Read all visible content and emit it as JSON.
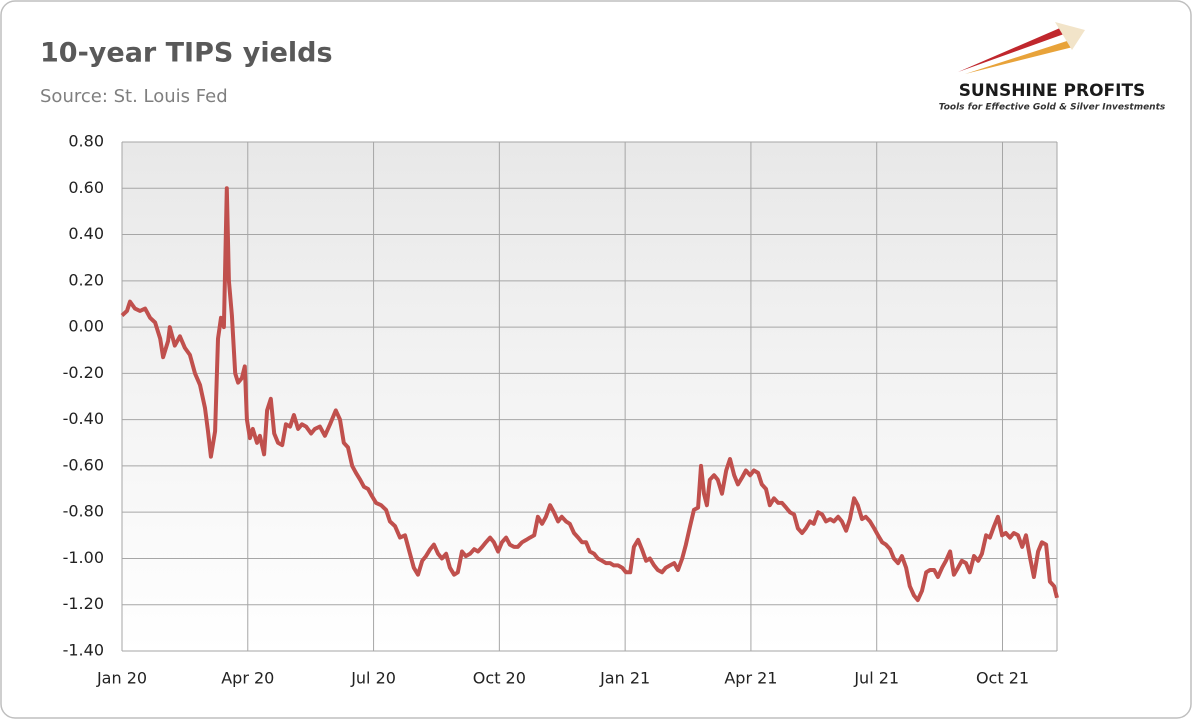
{
  "chart_data": {
    "type": "line",
    "title": "10-year TIPS yields",
    "subtitle": "Source: St. Louis Fed",
    "logo": {
      "name": "SUNSHINE PROFITS",
      "tagline": "Tools for Effective Gold & Silver Investments"
    },
    "x": [
      0,
      0.12,
      0.19,
      0.31,
      0.43,
      0.55,
      0.67,
      0.79,
      0.91,
      0.98,
      1.1,
      1.14,
      1.26,
      1.38,
      1.5,
      1.62,
      1.74,
      1.86,
      1.98,
      2.05,
      2.12,
      2.22,
      2.29,
      2.36,
      2.43,
      2.5,
      2.55,
      2.62,
      2.7,
      2.77,
      2.86,
      2.93,
      2.98,
      3.05,
      3.12,
      3.22,
      3.29,
      3.39,
      3.46,
      3.55,
      3.63,
      3.72,
      3.82,
      3.91,
      4.01,
      4.1,
      4.2,
      4.29,
      4.39,
      4.51,
      4.6,
      4.72,
      4.84,
      4.96,
      5.1,
      5.2,
      5.29,
      5.39,
      5.49,
      5.58,
      5.68,
      5.77,
      5.87,
      5.96,
      6.06,
      6.18,
      6.3,
      6.39,
      6.51,
      6.63,
      6.75,
      6.87,
      6.96,
      7.06,
      7.16,
      7.25,
      7.35,
      7.44,
      7.54,
      7.63,
      7.73,
      7.82,
      7.92,
      8.01,
      8.11,
      8.2,
      8.3,
      8.4,
      8.49,
      8.59,
      8.68,
      8.78,
      8.87,
      8.97,
      9.06,
      9.16,
      9.25,
      9.35,
      9.44,
      9.54,
      9.64,
      9.73,
      9.83,
      9.92,
      10.02,
      10.11,
      10.21,
      10.3,
      10.4,
      10.49,
      10.59,
      10.68,
      10.78,
      10.88,
      10.97,
      11.07,
      11.16,
      11.26,
      11.35,
      11.45,
      11.54,
      11.64,
      11.73,
      11.83,
      11.93,
      12.02,
      12.12,
      12.21,
      12.31,
      12.4,
      12.5,
      12.59,
      12.69,
      12.78,
      12.88,
      12.97,
      13.07,
      13.17,
      13.26,
      13.36,
      13.45,
      13.55,
      13.64,
      13.74,
      13.81,
      13.88,
      13.95,
      14.02,
      14.12,
      14.21,
      14.31,
      14.41,
      14.5,
      14.6,
      14.69,
      14.79,
      14.88,
      14.98,
      15.07,
      15.17,
      15.26,
      15.36,
      15.45,
      15.55,
      15.65,
      15.74,
      15.84,
      15.93,
      16.03,
      16.12,
      16.22,
      16.31,
      16.41,
      16.5,
      16.6,
      16.7,
      16.79,
      16.89,
      16.98,
      17.08,
      17.17,
      17.27,
      17.36,
      17.46,
      17.55,
      17.65,
      17.74,
      17.84,
      17.94,
      18.03,
      18.13,
      18.22,
      18.32,
      18.41,
      18.51,
      18.6,
      18.7,
      18.79,
      18.89,
      18.98,
      19.08,
      19.18,
      19.27,
      19.37,
      19.46,
      19.56,
      19.65,
      19.75,
      19.84,
      19.94,
      20.03,
      20.13,
      20.22,
      20.32,
      20.42,
      20.51,
      20.61,
      20.7,
      20.8,
      20.89,
      20.99,
      21.08,
      21.18,
      21.27,
      21.37,
      21.47,
      21.56,
      21.66,
      21.75,
      21.85,
      21.94,
      22.04,
      22.13,
      22.23,
      22.3
    ],
    "series": [
      {
        "color": "#c0504d",
        "values": [
          0.05,
          0.07,
          0.11,
          0.08,
          0.07,
          0.08,
          0.04,
          0.02,
          -0.05,
          -0.13,
          -0.06,
          0.0,
          -0.08,
          -0.04,
          -0.09,
          -0.12,
          -0.2,
          -0.25,
          -0.35,
          -0.45,
          -0.56,
          -0.45,
          -0.05,
          0.04,
          0.0,
          0.6,
          0.2,
          0.05,
          -0.2,
          -0.24,
          -0.22,
          -0.17,
          -0.4,
          -0.48,
          -0.44,
          -0.5,
          -0.47,
          -0.55,
          -0.36,
          -0.31,
          -0.46,
          -0.5,
          -0.51,
          -0.42,
          -0.43,
          -0.38,
          -0.44,
          -0.42,
          -0.43,
          -0.46,
          -0.44,
          -0.43,
          -0.47,
          -0.42,
          -0.36,
          -0.4,
          -0.5,
          -0.52,
          -0.6,
          -0.63,
          -0.66,
          -0.69,
          -0.7,
          -0.73,
          -0.76,
          -0.77,
          -0.79,
          -0.84,
          -0.86,
          -0.91,
          -0.9,
          -0.98,
          -1.04,
          -1.07,
          -1.01,
          -0.99,
          -0.96,
          -0.94,
          -0.98,
          -1.0,
          -0.98,
          -1.04,
          -1.07,
          -1.06,
          -0.97,
          -0.99,
          -0.98,
          -0.96,
          -0.97,
          -0.95,
          -0.93,
          -0.91,
          -0.93,
          -0.97,
          -0.93,
          -0.91,
          -0.94,
          -0.95,
          -0.95,
          -0.93,
          -0.92,
          -0.91,
          -0.9,
          -0.82,
          -0.85,
          -0.82,
          -0.77,
          -0.8,
          -0.84,
          -0.82,
          -0.84,
          -0.85,
          -0.89,
          -0.91,
          -0.93,
          -0.93,
          -0.97,
          -0.98,
          -1.0,
          -1.01,
          -1.02,
          -1.02,
          -1.03,
          -1.03,
          -1.04,
          -1.06,
          -1.06,
          -0.95,
          -0.92,
          -0.96,
          -1.01,
          -1.0,
          -1.03,
          -1.05,
          -1.06,
          -1.04,
          -1.03,
          -1.02,
          -1.05,
          -1.0,
          -0.94,
          -0.86,
          -0.79,
          -0.78,
          -0.6,
          -0.72,
          -0.77,
          -0.66,
          -0.64,
          -0.66,
          -0.72,
          -0.62,
          -0.57,
          -0.64,
          -0.68,
          -0.65,
          -0.62,
          -0.64,
          -0.62,
          -0.63,
          -0.68,
          -0.7,
          -0.77,
          -0.74,
          -0.76,
          -0.76,
          -0.78,
          -0.8,
          -0.81,
          -0.87,
          -0.89,
          -0.87,
          -0.84,
          -0.85,
          -0.8,
          -0.81,
          -0.84,
          -0.83,
          -0.84,
          -0.82,
          -0.84,
          -0.88,
          -0.83,
          -0.74,
          -0.77,
          -0.83,
          -0.82,
          -0.84,
          -0.87,
          -0.9,
          -0.93,
          -0.94,
          -0.96,
          -1.0,
          -1.02,
          -0.99,
          -1.04,
          -1.12,
          -1.16,
          -1.18,
          -1.14,
          -1.06,
          -1.05,
          -1.05,
          -1.08,
          -1.04,
          -1.01,
          -0.97,
          -1.07,
          -1.04,
          -1.01,
          -1.02,
          -1.06,
          -0.99,
          -1.01,
          -0.98,
          -0.9,
          -0.91,
          -0.86,
          -0.82,
          -0.9,
          -0.89,
          -0.91,
          -0.89,
          -0.9,
          -0.95,
          -0.9,
          -1.0,
          -1.08,
          -0.97,
          -0.93,
          -0.94,
          -1.1,
          -1.12,
          -1.17
        ]
      }
    ],
    "xlim": [
      0,
      22.3
    ],
    "xticks": [
      {
        "value": 0,
        "label": "Jan 20"
      },
      {
        "value": 3,
        "label": "Apr 20"
      },
      {
        "value": 6,
        "label": "Jul 20"
      },
      {
        "value": 9,
        "label": "Oct 20"
      },
      {
        "value": 12,
        "label": "Jan 21"
      },
      {
        "value": 15,
        "label": "Apr 21"
      },
      {
        "value": 18,
        "label": "Jul 21"
      },
      {
        "value": 21,
        "label": "Oct 21"
      }
    ],
    "ylim": [
      -1.4,
      0.8
    ],
    "yticks": [
      {
        "value": 0.8,
        "label": "0.80"
      },
      {
        "value": 0.6,
        "label": "0.60"
      },
      {
        "value": 0.4,
        "label": "0.40"
      },
      {
        "value": 0.2,
        "label": "0.20"
      },
      {
        "value": 0,
        "label": "0.00"
      },
      {
        "value": -0.2,
        "label": "-0.20"
      },
      {
        "value": -0.4,
        "label": "-0.40"
      },
      {
        "value": -0.6,
        "label": "-0.60"
      },
      {
        "value": -0.8,
        "label": "-0.80"
      },
      {
        "value": -1.0,
        "label": "-1.00"
      },
      {
        "value": -1.2,
        "label": "-1.20"
      },
      {
        "value": -1.4,
        "label": "-1.40"
      }
    ],
    "grid": true
  }
}
